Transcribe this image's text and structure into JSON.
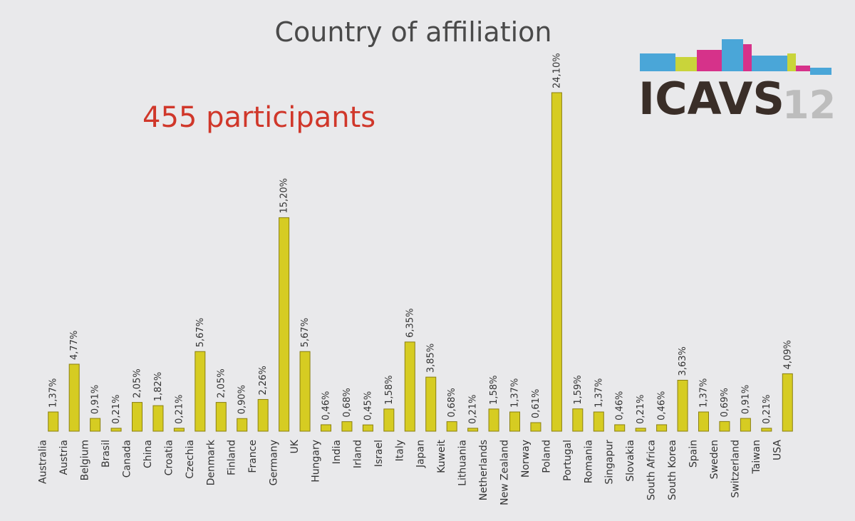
{
  "chart_data": {
    "type": "bar",
    "title": "Country of affiliation",
    "subtitle": "455 participants",
    "categories": [
      "Australia",
      "Austria",
      "Belgium",
      "Brasil",
      "Canada",
      "China",
      "Croatia",
      "Czechia",
      "Denmark",
      "Finland",
      "France",
      "Germany",
      "UK",
      "Hungary",
      "India",
      "Irland",
      "Israel",
      "Italy",
      "Japan",
      "Kuweit",
      "Lithuania",
      "Netherlands",
      "New Zealand",
      "Norway",
      "Poland",
      "Portugal",
      "Romania",
      "Singapur",
      "Slovakia",
      "South Africa",
      "South Korea",
      "Spain",
      "Sweden",
      "Switzerland",
      "Taiwan",
      "USA"
    ],
    "values": [
      1.37,
      4.77,
      0.91,
      0.21,
      2.05,
      1.82,
      0.21,
      5.67,
      2.05,
      0.9,
      2.26,
      15.2,
      5.67,
      0.46,
      0.68,
      0.45,
      1.58,
      6.35,
      3.85,
      0.68,
      0.21,
      1.58,
      1.37,
      0.61,
      24.1,
      1.59,
      1.37,
      0.46,
      0.21,
      0.46,
      3.63,
      1.37,
      0.69,
      0.91,
      0.21,
      4.09
    ],
    "value_labels": [
      "1,37%",
      "4,77%",
      "0,91%",
      "0,21%",
      "2,05%",
      "1,82%",
      "0,21%",
      "5,67%",
      "2,05%",
      "0,90%",
      "2,26%",
      "15,20%",
      "5,67%",
      "0,46%",
      "0,68%",
      "0,45%",
      "1,58%",
      "6,35%",
      "3,85%",
      "0,68%",
      "0,21%",
      "1,58%",
      "1,37%",
      "0,61%",
      "24,10%",
      "1,59%",
      "1,37%",
      "0,46%",
      "0,21%",
      "0,46%",
      "3,63%",
      "1,37%",
      "0,69%",
      "0,91%",
      "0,21%",
      "4,09%"
    ],
    "color": "#d6cc22"
  },
  "logo": {
    "name": "ICAVS",
    "number": "12"
  }
}
